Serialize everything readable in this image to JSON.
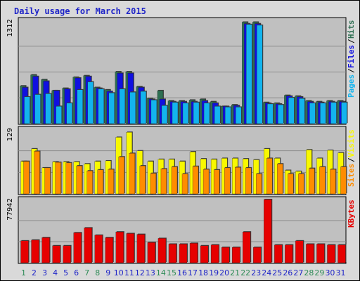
{
  "chart_data": {
    "type": "bar",
    "title": "Daily usage for March 2015",
    "categories": [
      "1",
      "2",
      "3",
      "4",
      "5",
      "6",
      "7",
      "8",
      "9",
      "10",
      "11",
      "12",
      "13",
      "14",
      "15",
      "16",
      "17",
      "18",
      "19",
      "20",
      "21",
      "22",
      "23",
      "24",
      "25",
      "26",
      "27",
      "28",
      "29",
      "30",
      "31"
    ],
    "weekend_days": [
      "1",
      "7",
      "8",
      "14",
      "15",
      "21",
      "22",
      "28",
      "29"
    ],
    "colors": {
      "title": "#1f25c8",
      "hits": "#2e6f52",
      "files": "#1010e0",
      "pages": "#13b4ee",
      "visits": "#f8f800",
      "sites": "#ff8c00",
      "kbytes": "#e60000",
      "weekday_label": "#1f25c8",
      "weekend_label": "#2e8b57",
      "plot_bg": "#c0c0c0",
      "frame_bg": "#d9d9d9"
    },
    "panels": [
      {
        "id": "hits_panel",
        "max_label": "1312",
        "ylim": [
          0,
          1312
        ],
        "legend": [
          {
            "text": "Pages",
            "color_key": "pages"
          },
          {
            "text": "Files",
            "color_key": "files"
          },
          {
            "text": "Hits",
            "color_key": "hits"
          }
        ],
        "series": [
          {
            "name": "Hits",
            "color_key": "hits",
            "values": [
              480,
              620,
              560,
              420,
              450,
              590,
              610,
              460,
              430,
              660,
              660,
              470,
              320,
              420,
              290,
              290,
              300,
              310,
              280,
              220,
              240,
              1290,
              1290,
              270,
              260,
              360,
              350,
              290,
              280,
              290,
              290
            ]
          },
          {
            "name": "Files",
            "color_key": "files",
            "values": [
              460,
              600,
              540,
              420,
              440,
              580,
              600,
              450,
              410,
              640,
              640,
              460,
              310,
              310,
              280,
              280,
              280,
              290,
              260,
              220,
              230,
              1270,
              1270,
              260,
              250,
              350,
              340,
              280,
              270,
              280,
              280
            ]
          },
          {
            "name": "Pages",
            "color_key": "pages",
            "values": [
              340,
              370,
              380,
              220,
              260,
              430,
              530,
              440,
              390,
              440,
              400,
              410,
              300,
              230,
              270,
              260,
              270,
              260,
              220,
              210,
              210,
              1260,
              1250,
              250,
              240,
              330,
              320,
              260,
              260,
              270,
              270
            ]
          }
        ]
      },
      {
        "id": "visits_panel",
        "max_label": "129",
        "ylim": [
          0,
          129
        ],
        "legend": [
          {
            "text": "Sites",
            "color_key": "sites"
          },
          {
            "text": "Visits",
            "color_key": "visits"
          }
        ],
        "series": [
          {
            "name": "Visits",
            "color_key": "visits",
            "values": [
              65,
              90,
              52,
              64,
              64,
              64,
              60,
              65,
              66,
              113,
              123,
              86,
              65,
              69,
              69,
              65,
              84,
              70,
              69,
              71,
              71,
              70,
              68,
              90,
              71,
              47,
              45,
              88,
              71,
              87,
              82
            ]
          },
          {
            "name": "Sites",
            "color_key": "sites",
            "values": [
              65,
              85,
              52,
              63,
              62,
              56,
              46,
              48,
              49,
              74,
              81,
              56,
              41,
              50,
              54,
              40,
              55,
              49,
              48,
              52,
              53,
              52,
              40,
              71,
              60,
              40,
              40,
              51,
              54,
              49,
              54
            ]
          }
        ]
      },
      {
        "id": "kbytes_panel",
        "max_label": "77942",
        "ylim": [
          0,
          77942
        ],
        "legend": [
          {
            "text": "KBytes",
            "color_key": "kbytes"
          }
        ],
        "series": [
          {
            "name": "KBytes",
            "color_key": "kbytes",
            "values": [
              27000,
              28000,
              31000,
              21000,
              21000,
              37000,
              43000,
              34000,
              31000,
              38000,
              36000,
              35000,
              25000,
              30000,
              23000,
              23000,
              24000,
              21000,
              22000,
              19000,
              19000,
              38000,
              19000,
              77942,
              22000,
              22000,
              27000,
              23000,
              23000,
              22000,
              22000
            ]
          }
        ]
      }
    ]
  }
}
